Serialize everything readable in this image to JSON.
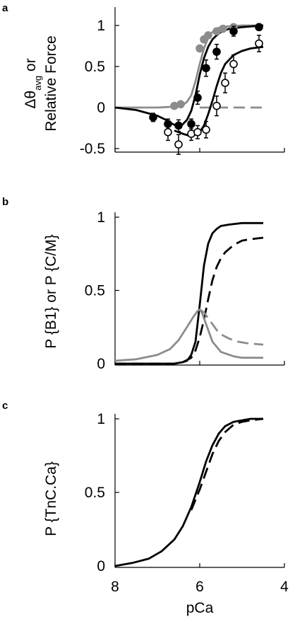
{
  "chart_data": [
    {
      "panel": "a",
      "type": "line",
      "ylabel": {
        "line1_prefix": "Δθ",
        "line1_sub": "avg",
        "line1_suffix": " or",
        "line2": "Relative Force"
      },
      "xlabel": "",
      "xlim": [
        8,
        4.5
      ],
      "ylim": [
        -0.55,
        1.1
      ],
      "x_reversed": true,
      "yticks": [
        -0.5,
        0,
        0.5,
        1
      ],
      "ytick_labels": [
        "-0.5",
        "0",
        "0.5",
        "1"
      ],
      "xticks": [
        8,
        6,
        4
      ],
      "series": [
        {
          "key": "gray_fit",
          "style": "solid",
          "color": "#8c8c8c",
          "x": [
            8.0,
            7.5,
            7.0,
            6.6,
            6.4,
            6.3,
            6.2,
            6.1,
            6.0,
            5.9,
            5.8,
            5.7,
            5.6,
            5.5,
            5.3,
            5.0,
            4.5
          ],
          "y": [
            0.0,
            0.0,
            0.0,
            0.01,
            0.03,
            0.07,
            0.15,
            0.32,
            0.53,
            0.72,
            0.85,
            0.92,
            0.96,
            0.98,
            0.99,
            1.0,
            1.0
          ]
        },
        {
          "key": "gray_dashed",
          "style": "dashed",
          "color": "#8c8c8c",
          "x": [
            6.0,
            4.5
          ],
          "y": [
            0.0,
            0.0
          ]
        },
        {
          "key": "black_fit",
          "style": "solid",
          "color": "#000000",
          "x": [
            8.0,
            7.5,
            7.0,
            6.8,
            6.6,
            6.45,
            6.3,
            6.2,
            6.1,
            6.0,
            5.9,
            5.8,
            5.7,
            5.6,
            5.5,
            5.3,
            5.0,
            4.5
          ],
          "y": [
            0.0,
            -0.03,
            -0.1,
            -0.15,
            -0.21,
            -0.23,
            -0.15,
            -0.04,
            0.15,
            0.4,
            0.6,
            0.74,
            0.83,
            0.88,
            0.92,
            0.96,
            0.98,
            1.0
          ]
        },
        {
          "key": "black_fit_2",
          "style": "solid",
          "color": "#000000",
          "x": [
            6.6,
            6.4,
            6.2,
            6.0,
            5.9,
            5.8,
            5.7,
            5.6,
            5.5,
            5.4,
            5.2,
            5.0,
            4.8,
            4.5
          ],
          "y": [
            -0.28,
            -0.32,
            -0.35,
            -0.3,
            -0.22,
            -0.08,
            0.08,
            0.26,
            0.42,
            0.53,
            0.64,
            0.69,
            0.72,
            0.74
          ]
        }
      ],
      "points": [
        {
          "key": "gray_filled",
          "fill": "#8c8c8c",
          "stroke": "#8c8c8c",
          "x": [
            6.6,
            6.45,
            6.0,
            5.9,
            5.8,
            5.6,
            5.45,
            5.2
          ],
          "y": [
            0.02,
            0.04,
            0.72,
            0.83,
            0.88,
            0.93,
            0.96,
            0.98
          ]
        },
        {
          "key": "black_filled",
          "fill": "#000000",
          "stroke": "#000000",
          "x": [
            7.1,
            6.75,
            6.5,
            6.2,
            6.05,
            5.85,
            5.6,
            5.2,
            4.6
          ],
          "y": [
            -0.12,
            -0.2,
            -0.22,
            -0.2,
            0.12,
            0.48,
            0.68,
            0.93,
            0.98
          ],
          "err": [
            0.05,
            0.06,
            0.07,
            0.06,
            0.08,
            0.1,
            0.09,
            0.06,
            0.04
          ]
        },
        {
          "key": "open_circles",
          "fill": "#ffffff",
          "stroke": "#000000",
          "x": [
            6.75,
            6.5,
            6.2,
            6.05,
            5.85,
            5.6,
            5.4,
            5.2,
            4.6
          ],
          "y": [
            -0.3,
            -0.45,
            -0.32,
            -0.3,
            -0.27,
            0.02,
            0.3,
            0.53,
            0.78
          ],
          "err": [
            0.1,
            0.12,
            0.08,
            0.08,
            0.1,
            0.12,
            0.12,
            0.11,
            0.1
          ]
        }
      ]
    },
    {
      "panel": "b",
      "type": "line",
      "ylabel": "P {B1} or P {C/M}",
      "xlabel": "",
      "xlim": [
        8,
        4.5
      ],
      "ylim": [
        0,
        1
      ],
      "x_reversed": true,
      "yticks": [
        0,
        0.5,
        1
      ],
      "ytick_labels": [
        "0",
        "0.5",
        "1"
      ],
      "xticks": [
        8,
        6,
        4
      ],
      "series": [
        {
          "key": "black_solid",
          "style": "solid",
          "color": "#000000",
          "x": [
            8.0,
            6.6,
            6.4,
            6.3,
            6.2,
            6.1,
            6.0,
            5.9,
            5.8,
            5.7,
            5.6,
            5.5,
            5.3,
            5.0,
            4.5
          ],
          "y": [
            0.0,
            0.0,
            0.01,
            0.02,
            0.06,
            0.15,
            0.4,
            0.67,
            0.82,
            0.89,
            0.92,
            0.94,
            0.95,
            0.96,
            0.96
          ]
        },
        {
          "key": "black_dashed",
          "style": "dashed",
          "color": "#000000",
          "x": [
            8.0,
            6.6,
            6.4,
            6.2,
            6.1,
            6.0,
            5.9,
            5.8,
            5.7,
            5.6,
            5.5,
            5.4,
            5.2,
            5.0,
            4.8,
            4.5
          ],
          "y": [
            0.0,
            0.0,
            0.01,
            0.04,
            0.09,
            0.18,
            0.3,
            0.44,
            0.57,
            0.66,
            0.72,
            0.76,
            0.81,
            0.84,
            0.85,
            0.86
          ]
        },
        {
          "key": "gray_solid",
          "style": "solid",
          "color": "#8c8c8c",
          "x": [
            8.0,
            7.5,
            7.0,
            6.7,
            6.5,
            6.3,
            6.15,
            6.05,
            6.0,
            5.95,
            5.85,
            5.7,
            5.5,
            5.2,
            5.0,
            4.5
          ],
          "y": [
            0.02,
            0.03,
            0.06,
            0.1,
            0.16,
            0.25,
            0.32,
            0.36,
            0.37,
            0.35,
            0.27,
            0.15,
            0.08,
            0.05,
            0.04,
            0.04
          ]
        },
        {
          "key": "gray_dashed",
          "style": "dashed",
          "color": "#8c8c8c",
          "x": [
            6.0,
            5.9,
            5.8,
            5.7,
            5.6,
            5.5,
            5.3,
            5.1,
            4.9,
            4.7,
            4.5
          ],
          "y": [
            0.37,
            0.35,
            0.31,
            0.27,
            0.23,
            0.2,
            0.17,
            0.15,
            0.14,
            0.135,
            0.13
          ]
        }
      ]
    },
    {
      "panel": "c",
      "type": "line",
      "ylabel": "P {TnC.Ca}",
      "xlabel": "pCa",
      "xlim": [
        8,
        4.5
      ],
      "ylim": [
        0,
        1
      ],
      "x_reversed": true,
      "yticks": [
        0,
        0.5,
        1
      ],
      "ytick_labels": [
        "0",
        "0.5",
        "1"
      ],
      "xticks": [
        8,
        6,
        4
      ],
      "xtick_labels": [
        "8",
        "6",
        "4"
      ],
      "series": [
        {
          "key": "solid",
          "style": "solid",
          "color": "#000000",
          "x": [
            8.0,
            7.6,
            7.2,
            6.9,
            6.6,
            6.4,
            6.2,
            6.0,
            5.85,
            5.7,
            5.55,
            5.4,
            5.2,
            5.0,
            4.8,
            4.5
          ],
          "y": [
            0.0,
            0.02,
            0.05,
            0.1,
            0.18,
            0.27,
            0.4,
            0.57,
            0.71,
            0.82,
            0.9,
            0.95,
            0.98,
            0.99,
            1.0,
            1.0
          ]
        },
        {
          "key": "dashed",
          "style": "dashed",
          "color": "#000000",
          "x": [
            6.2,
            6.0,
            5.85,
            5.7,
            5.55,
            5.4,
            5.2,
            5.0,
            4.8,
            4.5
          ],
          "y": [
            0.38,
            0.52,
            0.64,
            0.76,
            0.85,
            0.91,
            0.96,
            0.98,
            0.99,
            1.0
          ]
        }
      ]
    }
  ]
}
